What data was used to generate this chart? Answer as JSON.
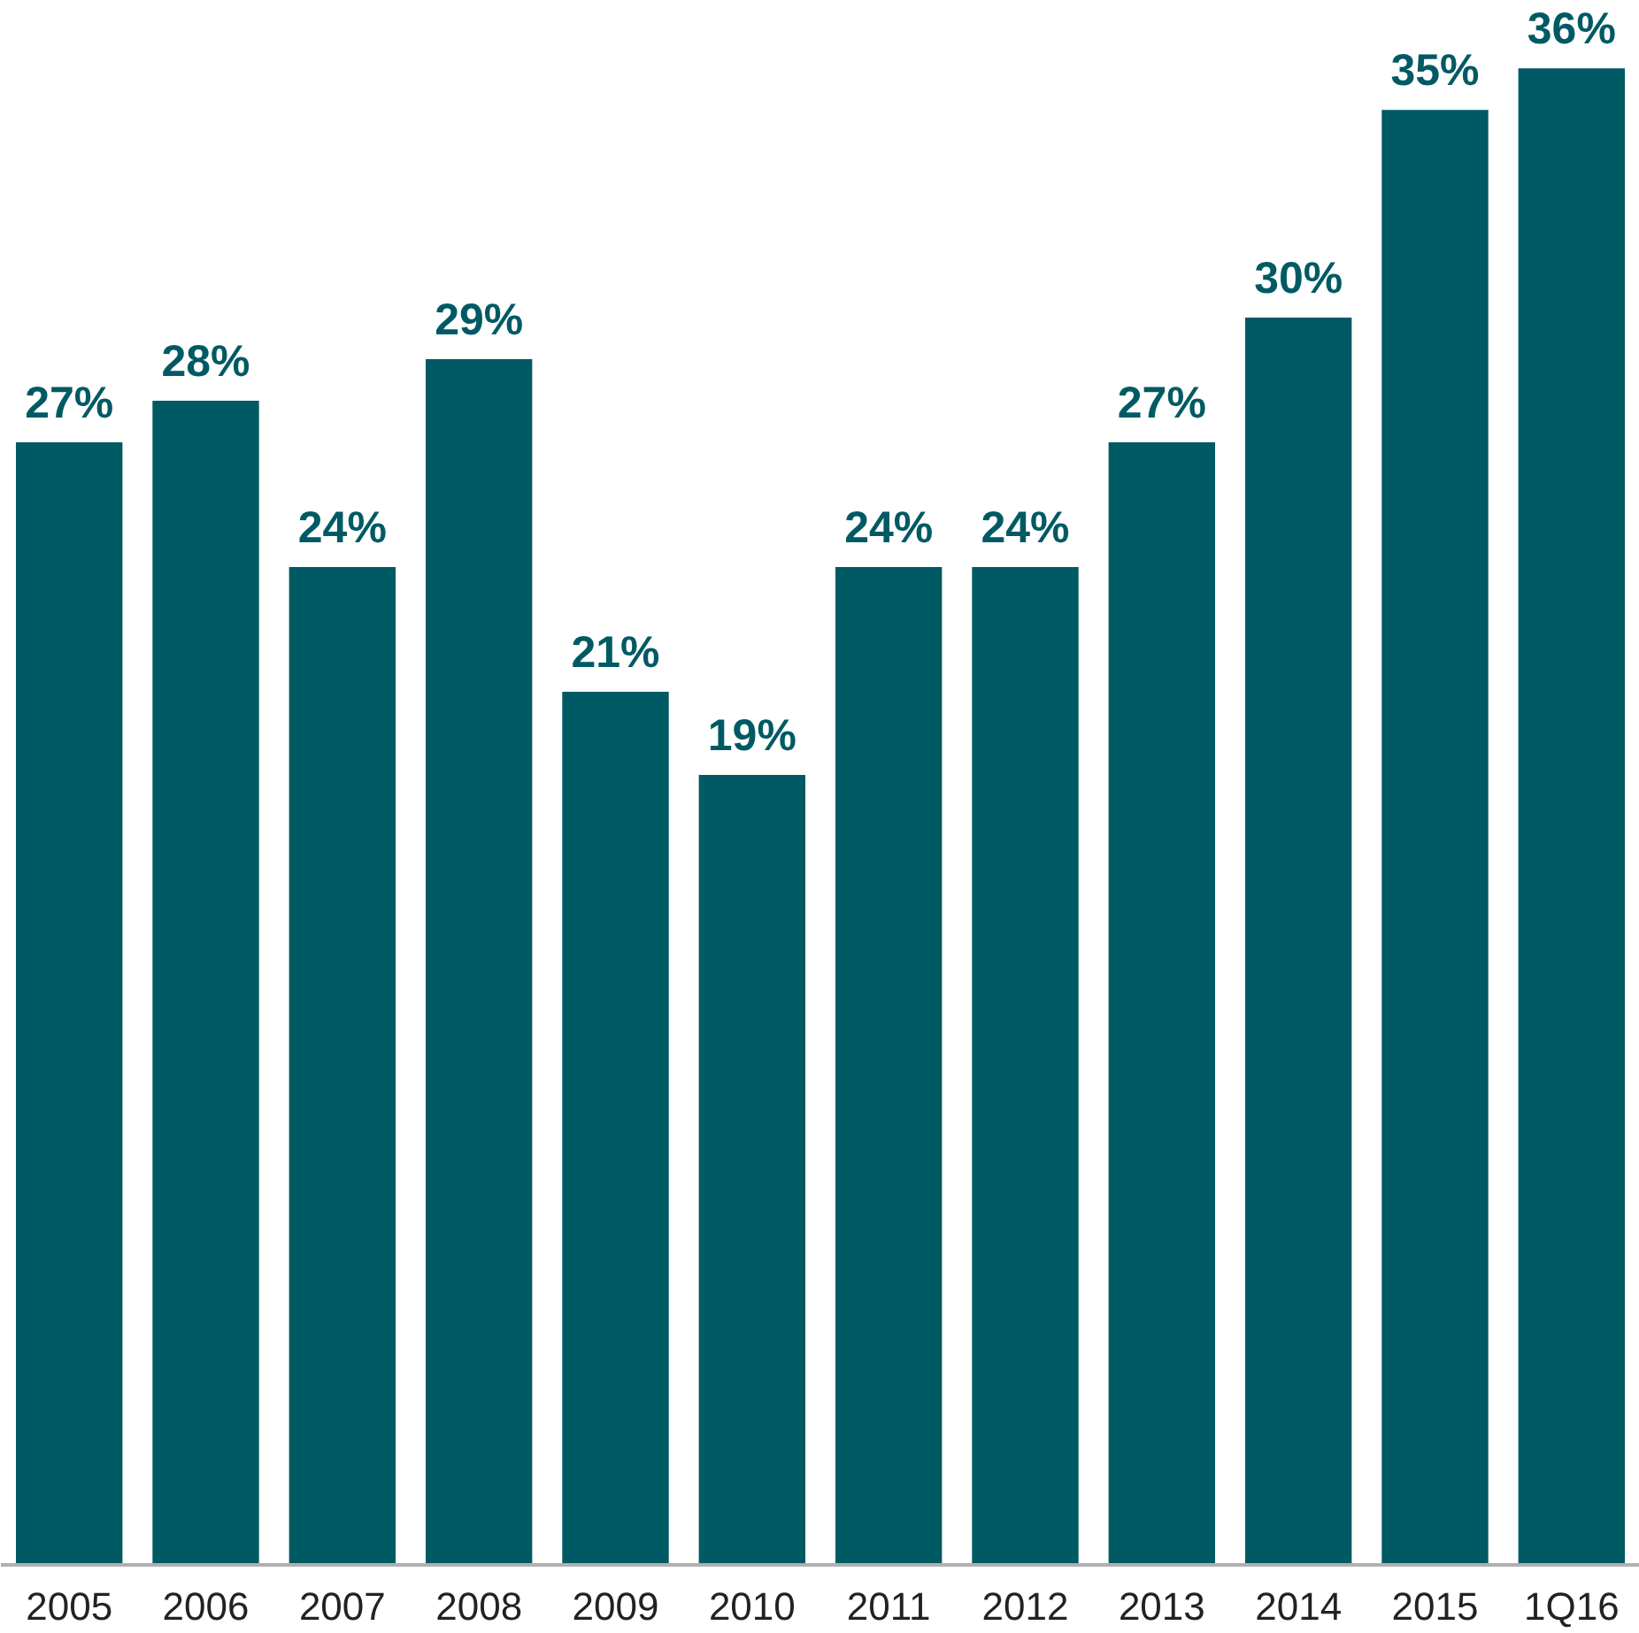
{
  "chart_data": {
    "type": "bar",
    "categories": [
      "2005",
      "2006",
      "2007",
      "2008",
      "2009",
      "2010",
      "2011",
      "2012",
      "2013",
      "2014",
      "2015",
      "1Q16"
    ],
    "values": [
      27,
      28,
      24,
      29,
      21,
      19,
      24,
      24,
      27,
      30,
      35,
      36
    ],
    "value_labels": [
      "27%",
      "28%",
      "24%",
      "29%",
      "21%",
      "19%",
      "24%",
      "24%",
      "27%",
      "30%",
      "35%",
      "36%"
    ],
    "color": "#005a64",
    "grid": false
  }
}
